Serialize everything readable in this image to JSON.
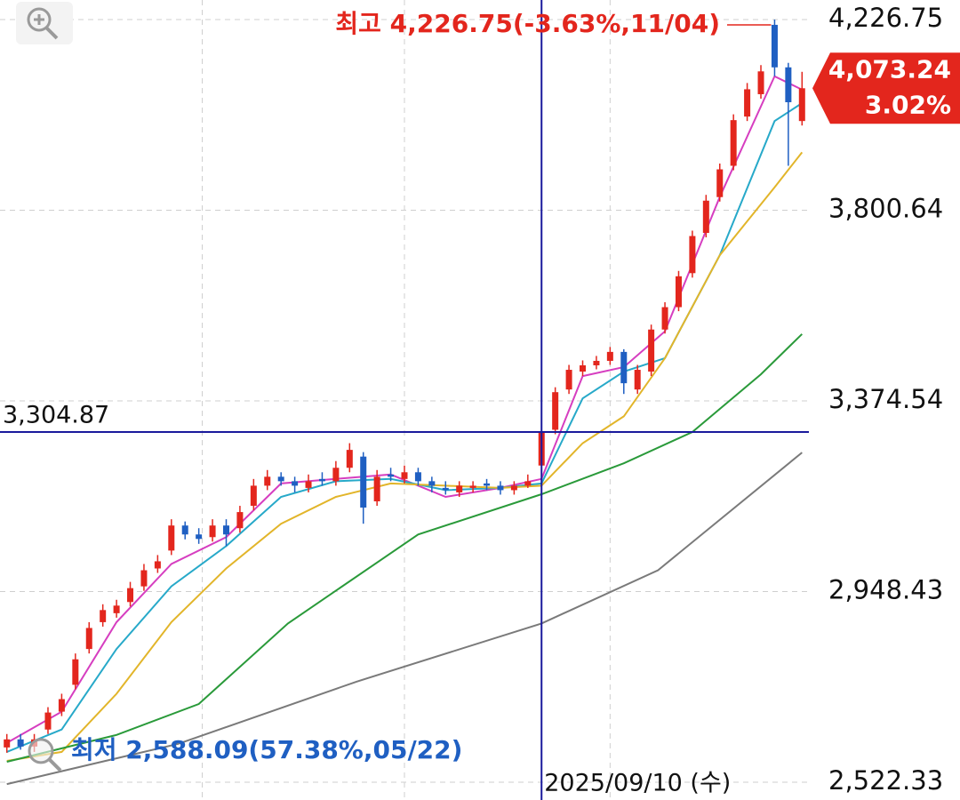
{
  "chart_data": {
    "type": "candlestick",
    "x": [
      0,
      2,
      4,
      6,
      8,
      10,
      12,
      14,
      16,
      18,
      20,
      22,
      24,
      26,
      28,
      30,
      32,
      34,
      36,
      38,
      40,
      42,
      44,
      46,
      48,
      50,
      52,
      54,
      56,
      58,
      60,
      62,
      64,
      66,
      68,
      70,
      72,
      74,
      76,
      78,
      80,
      82,
      84,
      86,
      88,
      90,
      92,
      94,
      96,
      98,
      100,
      102,
      104,
      106,
      108,
      110,
      112,
      114,
      116
    ],
    "open": [
      2600,
      2618,
      2602,
      2640,
      2680,
      2740,
      2820,
      2880,
      2900,
      2925,
      2960,
      3000,
      3040,
      3096,
      3076,
      3070,
      3096,
      3090,
      3140,
      3185,
      3205,
      3195,
      3180,
      3200,
      3195,
      3225,
      3250,
      3150,
      3210,
      3200,
      3215,
      3195,
      3180,
      3170,
      3180,
      3190,
      3185,
      3175,
      3185,
      3230,
      3310,
      3400,
      3440,
      3454,
      3464,
      3484,
      3400,
      3440,
      3534,
      3584,
      3660,
      3750,
      3830,
      3900,
      4010,
      4060,
      4215,
      4120,
      4000
    ],
    "high": [
      2630,
      2630,
      2630,
      2690,
      2720,
      2810,
      2880,
      2920,
      2930,
      2970,
      3010,
      3030,
      3110,
      3105,
      3090,
      3110,
      3110,
      3140,
      3200,
      3220,
      3215,
      3205,
      3210,
      3215,
      3240,
      3280,
      3260,
      3220,
      3225,
      3230,
      3225,
      3205,
      3195,
      3195,
      3195,
      3200,
      3195,
      3195,
      3210,
      3315,
      3405,
      3455,
      3465,
      3475,
      3495,
      3490,
      3455,
      3545,
      3595,
      3665,
      3755,
      3835,
      3905,
      4015,
      4085,
      4125,
      4226.75,
      4130,
      4110
    ],
    "low": [
      2588.09,
      2595,
      2590,
      2630,
      2670,
      2730,
      2810,
      2870,
      2890,
      2915,
      2950,
      2990,
      3030,
      3065,
      3055,
      3060,
      3050,
      3080,
      3130,
      3175,
      3185,
      3170,
      3170,
      3185,
      3185,
      3215,
      3100,
      3140,
      3195,
      3190,
      3185,
      3170,
      3165,
      3160,
      3170,
      3175,
      3165,
      3165,
      3180,
      3220,
      3300,
      3390,
      3430,
      3445,
      3455,
      3390,
      3390,
      3430,
      3525,
      3575,
      3650,
      3740,
      3820,
      3890,
      4000,
      4050,
      4100,
      3900,
      3990
    ],
    "close": [
      2618,
      2602,
      2618,
      2678,
      2708,
      2797,
      2867,
      2907,
      2917,
      2956,
      2996,
      3016,
      3096,
      3076,
      3066,
      3096,
      3076,
      3126,
      3185,
      3205,
      3195,
      3185,
      3195,
      3195,
      3225,
      3265,
      3136,
      3205,
      3205,
      3215,
      3195,
      3185,
      3175,
      3185,
      3185,
      3185,
      3175,
      3185,
      3195,
      3305,
      3394,
      3444,
      3454,
      3464,
      3484,
      3414,
      3444,
      3534,
      3584,
      3653,
      3743,
      3822,
      3892,
      4002,
      4071,
      4111,
      4120,
      4042,
      4073.24
    ],
    "up_color": "#e3261d",
    "down_color": "#1f5fc2",
    "xlim": [
      -1,
      117
    ],
    "ylim": [
      2482.5,
      4270.5
    ],
    "yticks": [
      {
        "value": 4226.75,
        "label": "4,226.75"
      },
      {
        "value": 3800.64,
        "label": "3,800.64"
      },
      {
        "value": 3374.54,
        "label": "3,374.54"
      },
      {
        "value": 2948.43,
        "label": "2,948.43"
      },
      {
        "value": 2522.33,
        "label": "2,522.33"
      }
    ],
    "xticks": [
      28.5,
      58,
      88
    ],
    "grid": true,
    "moving_averages": [
      {
        "color": "#d63ec0",
        "x": [
          0,
          8,
          16,
          24,
          32,
          40,
          48,
          56,
          64,
          72,
          78,
          84,
          90,
          96,
          104,
          112,
          116
        ],
        "values": [
          2610,
          2680,
          2880,
          3010,
          3070,
          3190,
          3200,
          3210,
          3160,
          3180,
          3200,
          3430,
          3450,
          3530,
          3830,
          4100,
          4070
        ]
      },
      {
        "color": "#27a9c9",
        "x": [
          0,
          8,
          16,
          24,
          32,
          40,
          48,
          56,
          64,
          72,
          78,
          84,
          90,
          96,
          104,
          112,
          116
        ],
        "values": [
          2590,
          2640,
          2820,
          2960,
          3050,
          3160,
          3195,
          3200,
          3175,
          3180,
          3190,
          3380,
          3440,
          3470,
          3700,
          4000,
          4040
        ]
      },
      {
        "color": "#e2b52a",
        "x": [
          0,
          8,
          16,
          24,
          32,
          40,
          48,
          56,
          64,
          72,
          78,
          84,
          90,
          96,
          104,
          112,
          116
        ],
        "values": [
          2570,
          2590,
          2720,
          2880,
          3000,
          3100,
          3160,
          3190,
          3185,
          3180,
          3185,
          3280,
          3340,
          3470,
          3700,
          3852,
          3930
        ]
      },
      {
        "color": "#2a9a3a",
        "x": [
          0,
          16,
          28,
          41,
          60,
          78,
          90,
          100,
          110,
          116
        ],
        "values": [
          2568,
          2628,
          2697,
          2877,
          3076,
          3166,
          3235,
          3305,
          3434,
          3524
        ]
      },
      {
        "color": "#7a7a7a",
        "x": [
          0,
          25,
          51,
          78,
          95,
          116
        ],
        "values": [
          2518,
          2608,
          2747,
          2877,
          2996,
          3259
        ]
      }
    ],
    "crosshair": {
      "x": 78,
      "x_label": "2025/09/10 (수)",
      "y": {
        "value": 3304.87,
        "label": "3,304.87"
      },
      "color": "#1a1a9c"
    },
    "annotations": {
      "high": "최고 4,226.75(-3.63%,11/04)",
      "low": "최저 2,588.09(57.38%,05/22)"
    },
    "last_price": {
      "label": "4,073.24",
      "change": "3.02%"
    }
  }
}
